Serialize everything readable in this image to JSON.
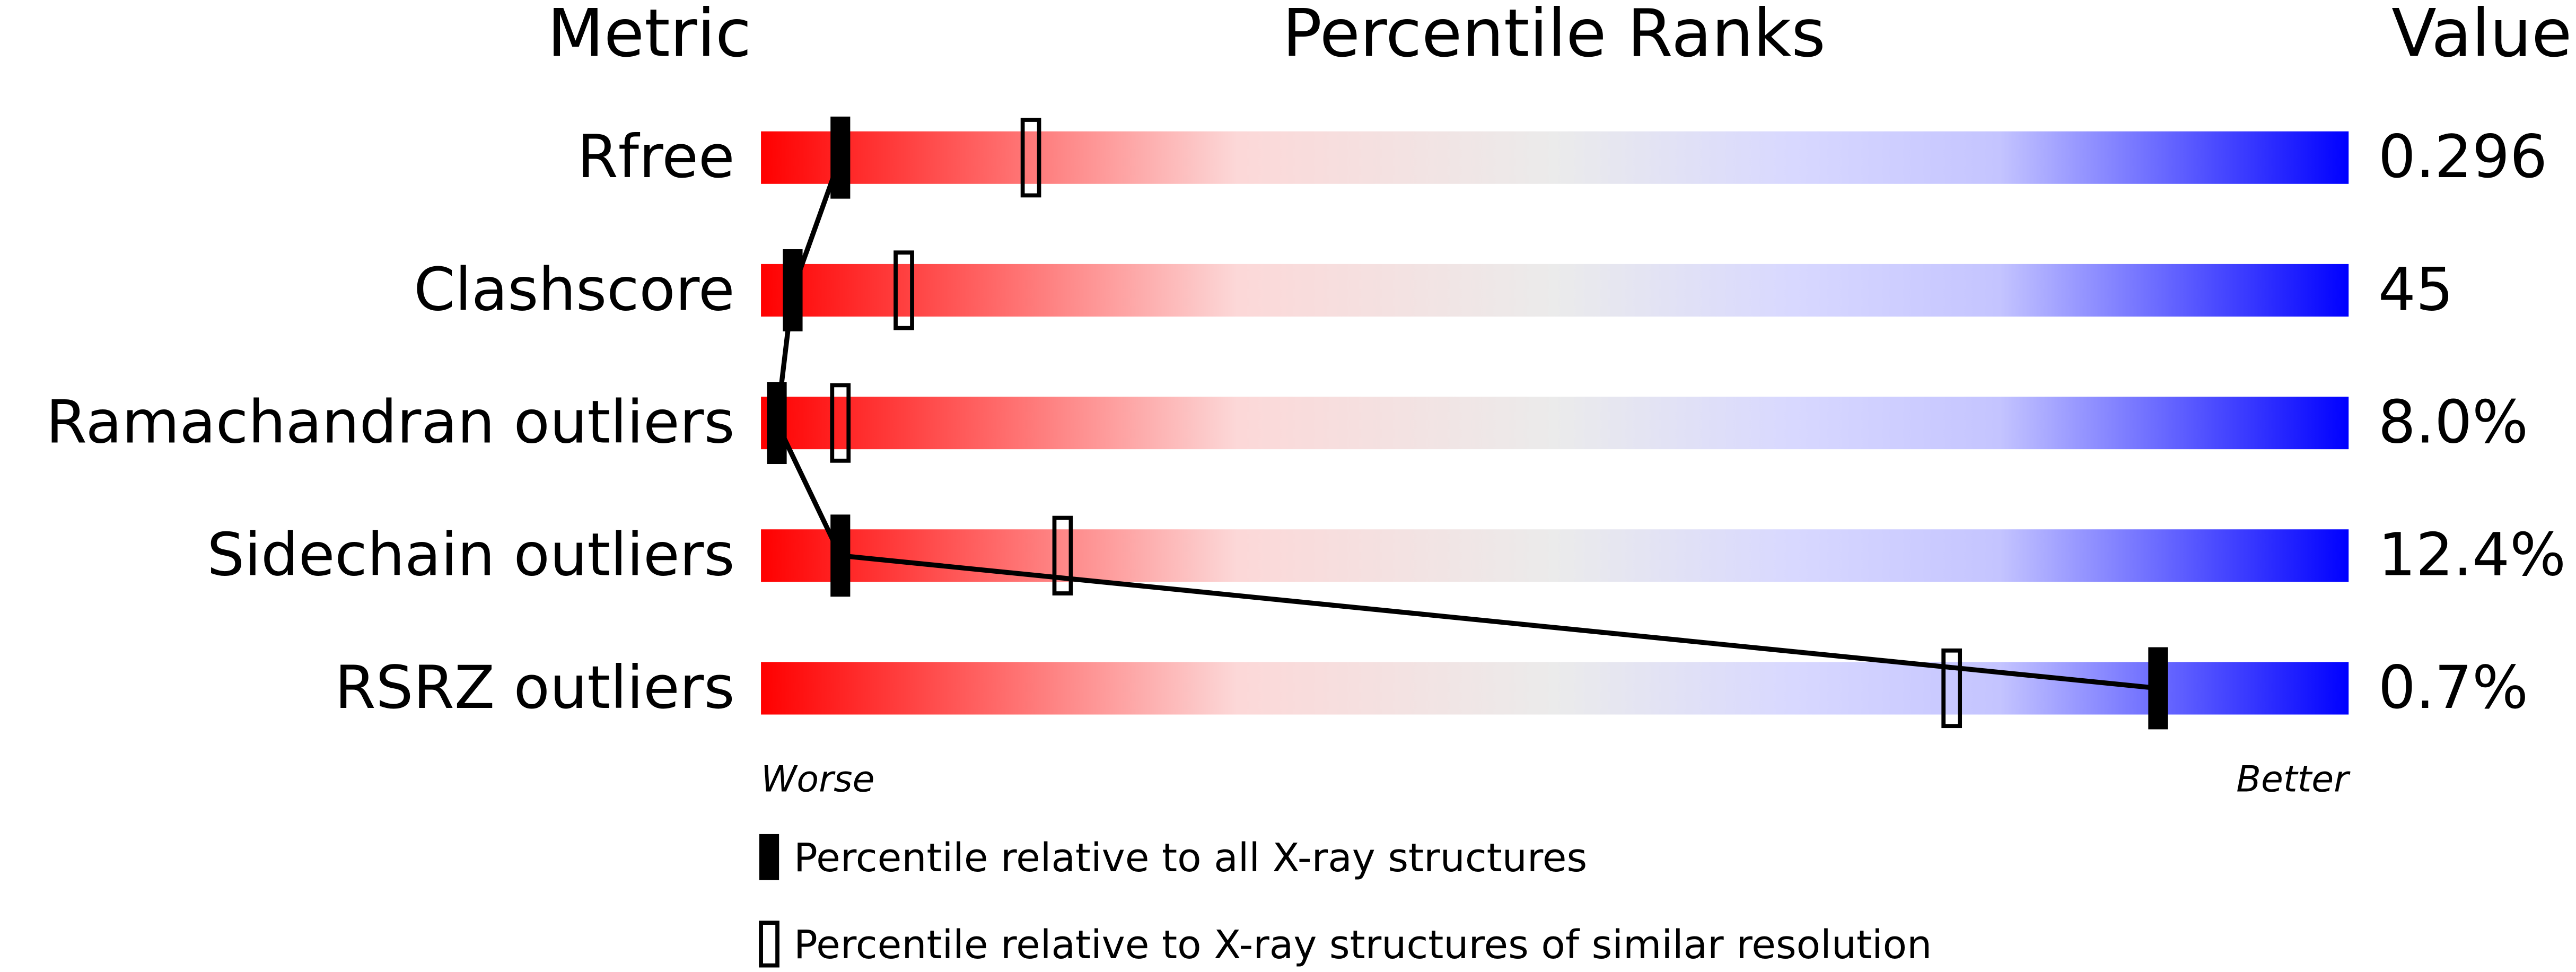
{
  "chart_data": {
    "type": "percentile-slider",
    "headers": {
      "metric": "Metric",
      "ranks": "Percentile Ranks",
      "value": "Value"
    },
    "categories": [
      "Rfree",
      "Clashscore",
      "Ramachandran outliers",
      "Sidechain outliers",
      "RSRZ outliers"
    ],
    "values": [
      0.296,
      45,
      8.0,
      12.4,
      0.7
    ],
    "value_labels": [
      "0.296",
      "45",
      "8.0%",
      "12.4%",
      "0.7%"
    ],
    "series": [
      {
        "name": "Percentile relative to all X-ray structures",
        "color": "#000000",
        "style": "filled",
        "values": [
          5,
          2,
          1,
          5,
          88
        ]
      },
      {
        "name": "Percentile relative to X-ray structures of similar resolution",
        "color": "#000000",
        "style": "open",
        "values": [
          17,
          9,
          5,
          19,
          75
        ]
      }
    ],
    "xlim": [
      0,
      100
    ],
    "x_low_label": "Worse",
    "x_high_label": "Better"
  }
}
